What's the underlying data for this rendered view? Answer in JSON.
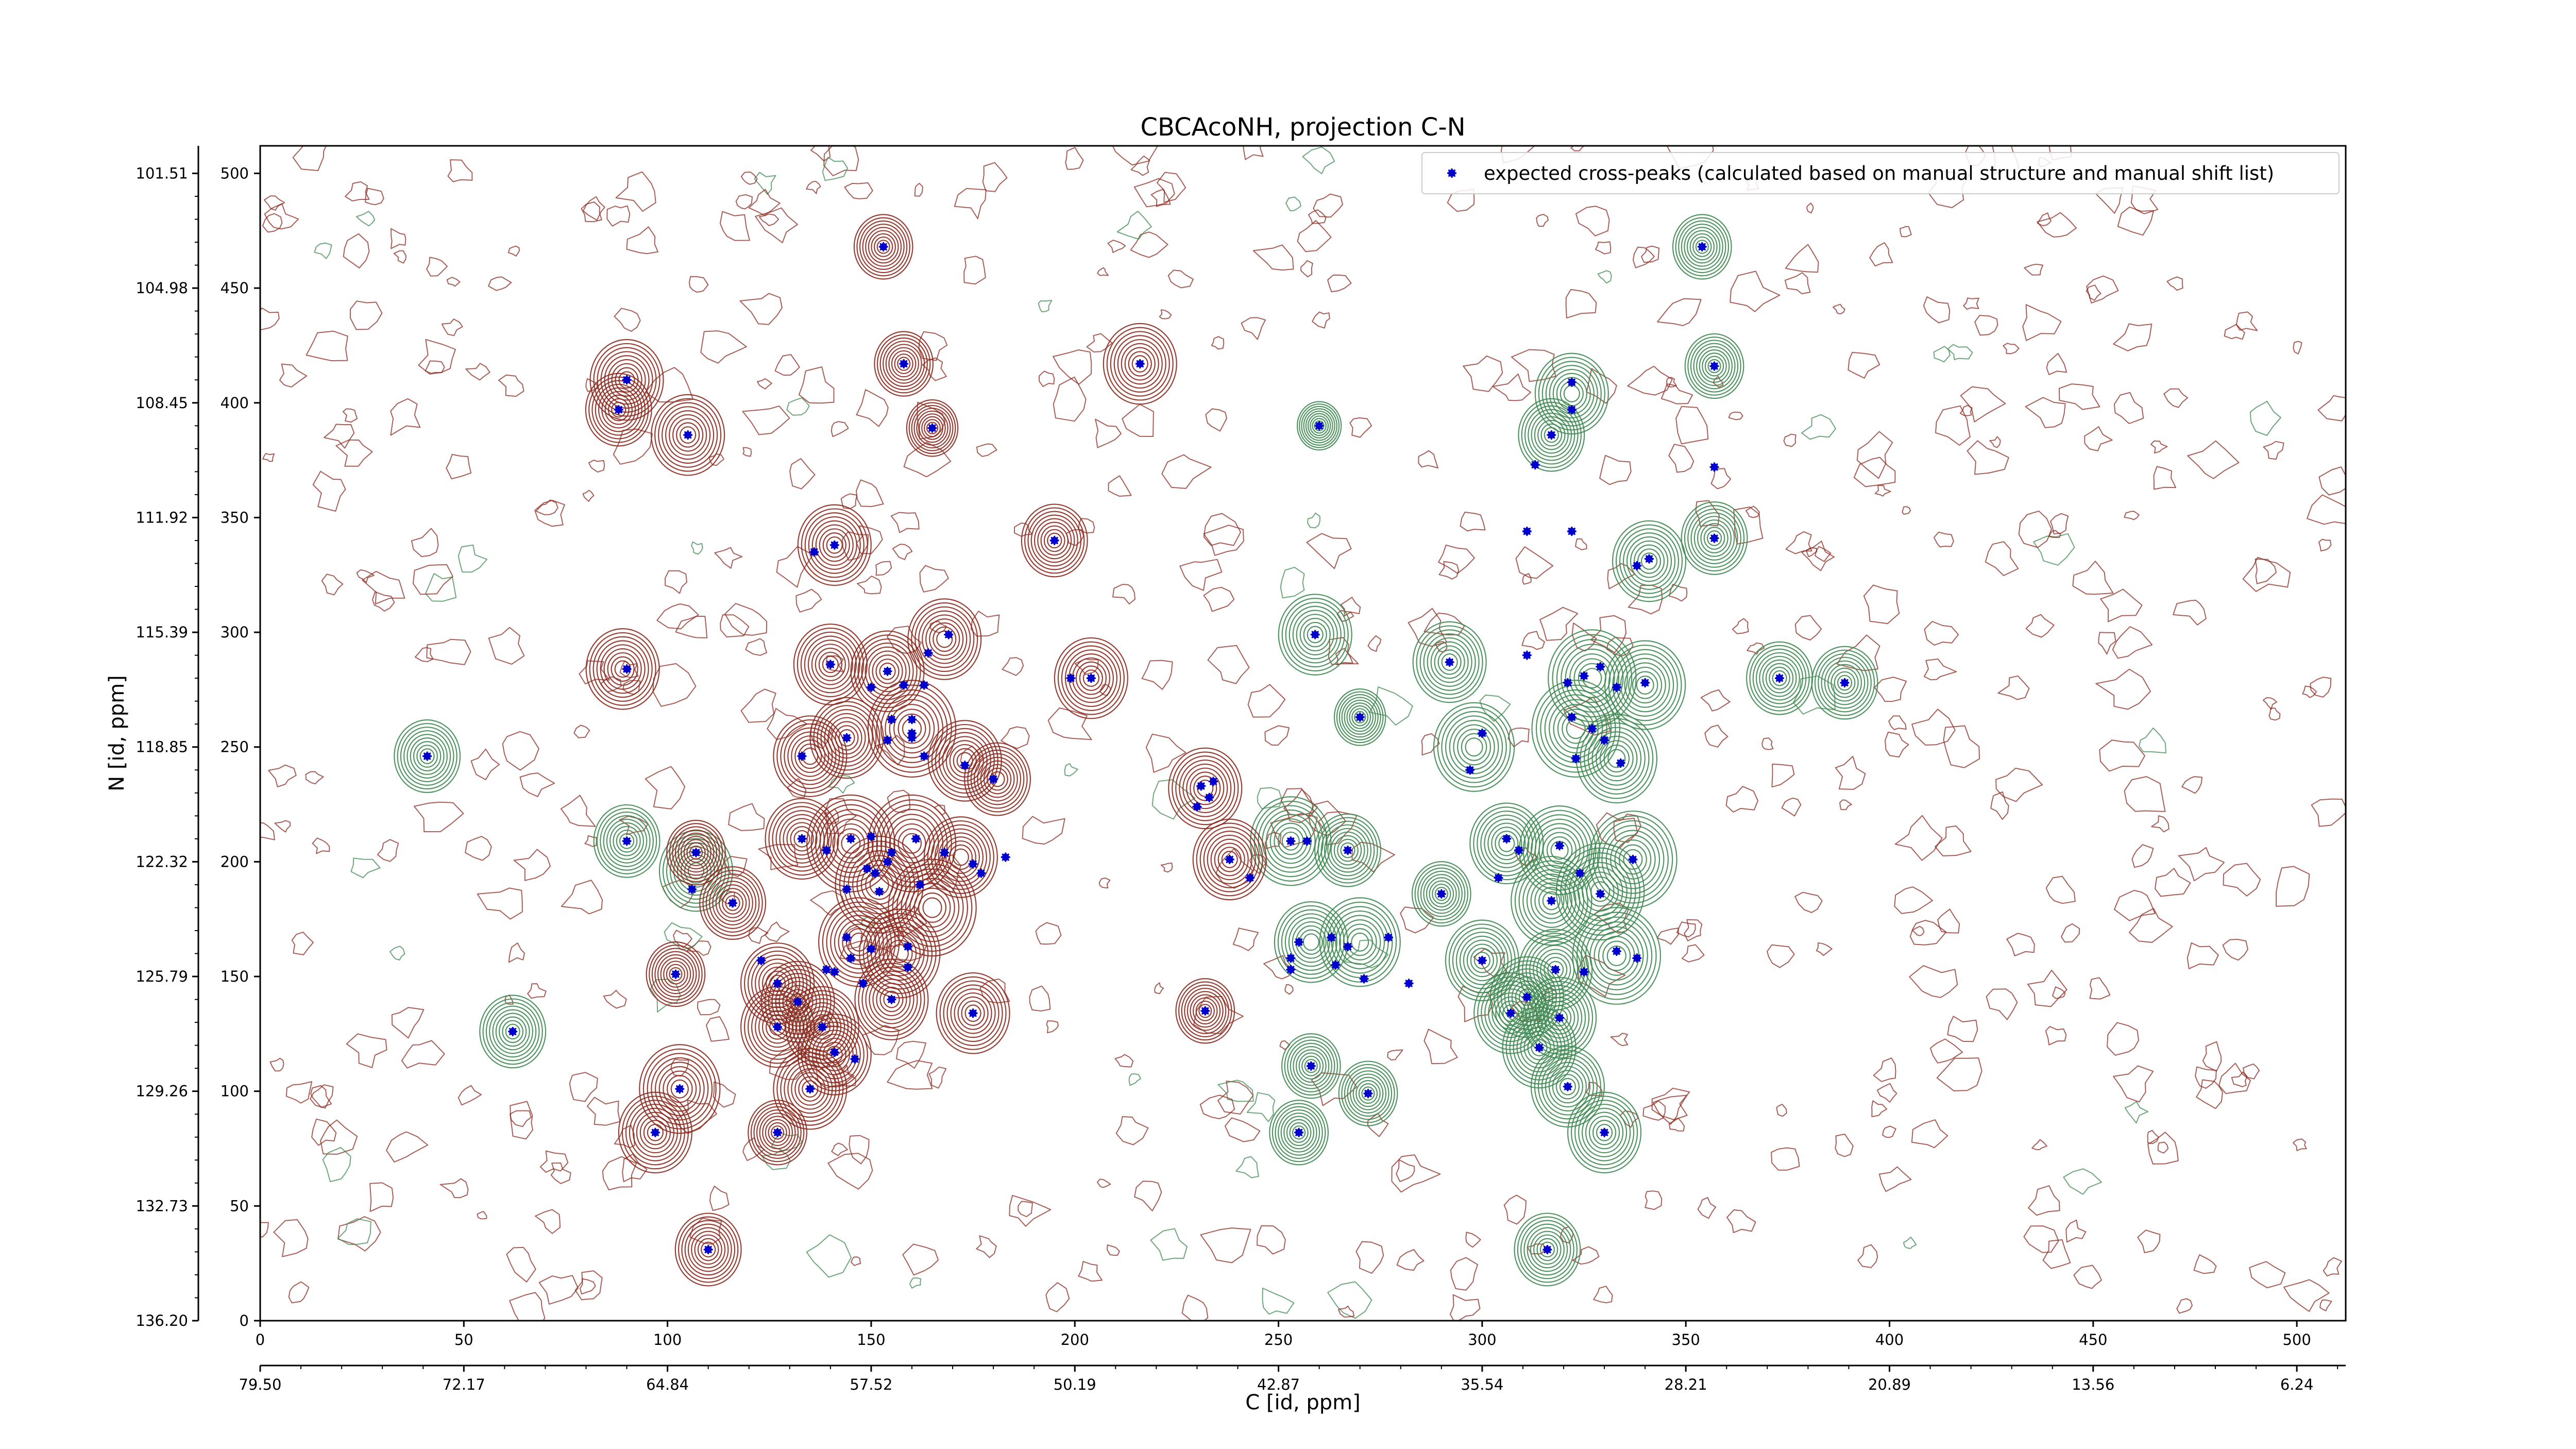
{
  "chart_data": {
    "type": "scatter",
    "title": "CBCAcoNH, projection C-N",
    "xlabel": "C [id, ppm]",
    "ylabel": "N [id, ppm]",
    "xlim": [
      0,
      512
    ],
    "ylim": [
      0,
      512
    ],
    "x_ticks": [
      0,
      50,
      100,
      150,
      200,
      250,
      300,
      350,
      400,
      450,
      500
    ],
    "y_ticks": [
      0,
      50,
      100,
      150,
      200,
      250,
      300,
      350,
      400,
      450,
      500
    ],
    "x_ppm_tick_labels": [
      "79.50",
      "72.17",
      "64.84",
      "57.52",
      "50.19",
      "42.87",
      "35.54",
      "28.21",
      "20.89",
      "13.56",
      "6.24"
    ],
    "y_ppm_tick_labels": [
      "136.20",
      "132.73",
      "129.26",
      "125.79",
      "122.32",
      "118.85",
      "115.39",
      "111.92",
      "108.45",
      "104.98",
      "101.51"
    ],
    "grid": false,
    "legend": "top-right",
    "colors": {
      "marker": "#0000cc",
      "positive_contour": "#8b2a1f",
      "negative_contour": "#3f8a52"
    },
    "series": [
      {
        "name": "expected cross-peaks (calculated based on manual structure and manual shift list)",
        "points": [
          [
            153,
            468
          ],
          [
            216,
            417
          ],
          [
            158,
            417
          ],
          [
            354,
            468
          ],
          [
            357,
            416
          ],
          [
            90,
            410
          ],
          [
            88,
            397
          ],
          [
            105,
            386
          ],
          [
            165,
            389
          ],
          [
            322,
            409
          ],
          [
            260,
            390
          ],
          [
            322,
            397
          ],
          [
            317,
            386
          ],
          [
            313,
            373
          ],
          [
            357,
            372
          ],
          [
            195,
            340
          ],
          [
            141,
            338
          ],
          [
            136,
            335
          ],
          [
            357,
            341
          ],
          [
            311,
            344
          ],
          [
            322,
            344
          ],
          [
            341,
            332
          ],
          [
            338,
            329
          ],
          [
            169,
            299
          ],
          [
            164,
            291
          ],
          [
            259,
            299
          ],
          [
            90,
            284
          ],
          [
            140,
            286
          ],
          [
            154,
            283
          ],
          [
            150,
            276
          ],
          [
            158,
            277
          ],
          [
            163,
            277
          ],
          [
            204,
            280
          ],
          [
            199,
            280
          ],
          [
            292,
            287
          ],
          [
            311,
            290
          ],
          [
            373,
            280
          ],
          [
            389,
            278
          ],
          [
            325,
            281
          ],
          [
            329,
            285
          ],
          [
            340,
            278
          ],
          [
            333,
            276
          ],
          [
            321,
            278
          ],
          [
            270,
            263
          ],
          [
            144,
            254
          ],
          [
            155,
            262
          ],
          [
            160,
            262
          ],
          [
            160,
            256
          ],
          [
            160,
            254
          ],
          [
            154,
            253
          ],
          [
            163,
            246
          ],
          [
            133,
            246
          ],
          [
            173,
            242
          ],
          [
            180,
            236
          ],
          [
            41,
            246
          ],
          [
            300,
            256
          ],
          [
            297,
            240
          ],
          [
            322,
            263
          ],
          [
            327,
            258
          ],
          [
            330,
            253
          ],
          [
            323,
            245
          ],
          [
            334,
            243
          ],
          [
            231,
            233
          ],
          [
            234,
            235
          ],
          [
            233,
            228
          ],
          [
            230,
            224
          ],
          [
            90,
            209
          ],
          [
            107,
            204
          ],
          [
            106,
            188
          ],
          [
            133,
            210
          ],
          [
            139,
            205
          ],
          [
            145,
            210
          ],
          [
            150,
            211
          ],
          [
            161,
            210
          ],
          [
            168,
            204
          ],
          [
            183,
            202
          ],
          [
            155,
            204
          ],
          [
            154,
            200
          ],
          [
            149,
            197
          ],
          [
            175,
            199
          ],
          [
            151,
            195
          ],
          [
            162,
            190
          ],
          [
            144,
            188
          ],
          [
            152,
            187
          ],
          [
            177,
            195
          ],
          [
            238,
            201
          ],
          [
            243,
            193
          ],
          [
            253,
            209
          ],
          [
            257,
            209
          ],
          [
            267,
            205
          ],
          [
            306,
            210
          ],
          [
            309,
            205
          ],
          [
            319,
            207
          ],
          [
            337,
            201
          ],
          [
            324,
            195
          ],
          [
            304,
            193
          ],
          [
            329,
            186
          ],
          [
            317,
            183
          ],
          [
            290,
            186
          ],
          [
            116,
            182
          ],
          [
            255,
            165
          ],
          [
            263,
            167
          ],
          [
            277,
            167
          ],
          [
            267,
            163
          ],
          [
            253,
            158
          ],
          [
            144,
            167
          ],
          [
            150,
            162
          ],
          [
            159,
            163
          ],
          [
            145,
            158
          ],
          [
            139,
            153
          ],
          [
            141,
            152
          ],
          [
            123,
            157
          ],
          [
            253,
            153
          ],
          [
            264,
            155
          ],
          [
            271,
            149
          ],
          [
            282,
            147
          ],
          [
            333,
            161
          ],
          [
            338,
            158
          ],
          [
            318,
            153
          ],
          [
            325,
            152
          ],
          [
            102,
            151
          ],
          [
            148,
            147
          ],
          [
            159,
            154
          ],
          [
            127,
            147
          ],
          [
            132,
            139
          ],
          [
            127,
            128
          ],
          [
            138,
            128
          ],
          [
            155,
            140
          ],
          [
            175,
            134
          ],
          [
            300,
            157
          ],
          [
            311,
            141
          ],
          [
            307,
            134
          ],
          [
            319,
            132
          ],
          [
            314,
            119
          ],
          [
            62,
            126
          ],
          [
            232,
            135
          ],
          [
            141,
            117
          ],
          [
            135,
            101
          ],
          [
            146,
            114
          ],
          [
            103,
            101
          ],
          [
            321,
            102
          ],
          [
            258,
            111
          ],
          [
            272,
            99
          ],
          [
            97,
            82
          ],
          [
            127,
            82
          ],
          [
            255,
            82
          ],
          [
            330,
            82
          ],
          [
            110,
            31
          ],
          [
            316,
            31
          ]
        ]
      }
    ],
    "contours": {
      "positive": [
        [
          90,
          410,
          1
        ],
        [
          88,
          397,
          0.9
        ],
        [
          105,
          386,
          1
        ],
        [
          153,
          468,
          0.8
        ],
        [
          158,
          417,
          0.8
        ],
        [
          165,
          389,
          0.7
        ],
        [
          216,
          417,
          1
        ],
        [
          195,
          340,
          0.9
        ],
        [
          141,
          338,
          1
        ],
        [
          89,
          284,
          1
        ],
        [
          140,
          286,
          1
        ],
        [
          154,
          283,
          1
        ],
        [
          168,
          297,
          1
        ],
        [
          204,
          280,
          1
        ],
        [
          144,
          254,
          1
        ],
        [
          160,
          258,
          1.2
        ],
        [
          135,
          246,
          1
        ],
        [
          173,
          244,
          1
        ],
        [
          181,
          236,
          0.9
        ],
        [
          107,
          204,
          0.8
        ],
        [
          116,
          182,
          0.9
        ],
        [
          133,
          210,
          1
        ],
        [
          145,
          208,
          1.2
        ],
        [
          160,
          208,
          1.2
        ],
        [
          172,
          202,
          1
        ],
        [
          152,
          190,
          1.2
        ],
        [
          165,
          180,
          1.2
        ],
        [
          147,
          165,
          1.1
        ],
        [
          157,
          160,
          1.1
        ],
        [
          102,
          151,
          0.8
        ],
        [
          127,
          147,
          1
        ],
        [
          132,
          139,
          1
        ],
        [
          155,
          140,
          1
        ],
        [
          175,
          134,
          1
        ],
        [
          127,
          128,
          1
        ],
        [
          138,
          128,
          1
        ],
        [
          141,
          116,
          1
        ],
        [
          135,
          101,
          1
        ],
        [
          103,
          101,
          1.1
        ],
        [
          97,
          82,
          1
        ],
        [
          127,
          82,
          0.8
        ],
        [
          110,
          31,
          0.9
        ],
        [
          232,
          232,
          1
        ],
        [
          238,
          201,
          1
        ],
        [
          232,
          135,
          0.8
        ]
      ],
      "negative": [
        [
          41,
          246,
          0.9
        ],
        [
          62,
          126,
          0.9
        ],
        [
          90,
          209,
          0.9
        ],
        [
          107,
          196,
          1
        ],
        [
          354,
          468,
          0.8
        ],
        [
          357,
          416,
          0.8
        ],
        [
          322,
          404,
          1
        ],
        [
          317,
          386,
          0.9
        ],
        [
          260,
          390,
          0.6
        ],
        [
          357,
          341,
          0.9
        ],
        [
          341,
          331,
          1
        ],
        [
          259,
          299,
          1
        ],
        [
          292,
          287,
          1
        ],
        [
          373,
          280,
          0.9
        ],
        [
          389,
          278,
          0.9
        ],
        [
          327,
          280,
          1.2
        ],
        [
          340,
          277,
          1.1
        ],
        [
          270,
          263,
          0.7
        ],
        [
          298,
          250,
          1.1
        ],
        [
          323,
          258,
          1.2
        ],
        [
          333,
          245,
          1.1
        ],
        [
          253,
          209,
          1.1
        ],
        [
          267,
          205,
          0.9
        ],
        [
          306,
          208,
          1
        ],
        [
          319,
          205,
          1.1
        ],
        [
          337,
          201,
          1.2
        ],
        [
          329,
          187,
          1.2
        ],
        [
          317,
          183,
          1.1
        ],
        [
          290,
          186,
          0.8
        ],
        [
          258,
          165,
          1
        ],
        [
          270,
          165,
          1.1
        ],
        [
          300,
          157,
          1
        ],
        [
          333,
          159,
          1.2
        ],
        [
          318,
          153,
          1
        ],
        [
          311,
          141,
          1
        ],
        [
          307,
          134,
          1
        ],
        [
          319,
          132,
          1
        ],
        [
          314,
          119,
          1
        ],
        [
          321,
          102,
          1
        ],
        [
          258,
          111,
          0.8
        ],
        [
          272,
          99,
          0.8
        ],
        [
          255,
          82,
          0.8
        ],
        [
          330,
          82,
          1
        ],
        [
          316,
          31,
          0.9
        ]
      ]
    }
  }
}
